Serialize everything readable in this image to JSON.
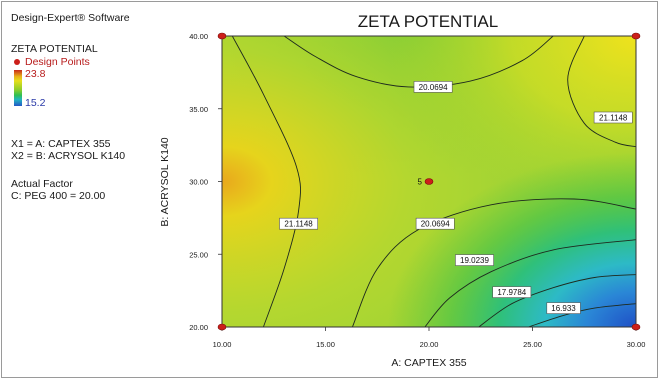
{
  "software_label": "Design-Expert® Software",
  "legend": {
    "response_name": "ZETA POTENTIAL",
    "design_points_label": "Design Points",
    "scale_max": "23.8",
    "scale_min": "15.2",
    "x1_line": "X1 = A: CAPTEX 355",
    "x2_line": "X2 = B: ACRYSOL K140",
    "actual_factor_title": "Actual Factor",
    "actual_factor_value": "C: PEG 400 = 20.00"
  },
  "colors": {
    "design_point": "#cc1f1a",
    "high": "#e6df1c",
    "mid": "#5fc43a",
    "low": "#2457c6"
  },
  "chart_data": {
    "type": "contour",
    "title": "ZETA POTENTIAL",
    "xlabel": "A: CAPTEX 355",
    "ylabel": "B: ACRYSOL K140",
    "xlim": [
      10,
      30
    ],
    "ylim": [
      20,
      40
    ],
    "x_ticks": [
      "10.00",
      "15.00",
      "20.00",
      "25.00",
      "30.00"
    ],
    "y_ticks": [
      "20.00",
      "25.00",
      "30.00",
      "35.00",
      "40.00"
    ],
    "color_range": [
      15.2,
      23.8
    ],
    "design_points": [
      {
        "x": 10,
        "y": 20,
        "label": ""
      },
      {
        "x": 30,
        "y": 20,
        "label": ""
      },
      {
        "x": 10,
        "y": 40,
        "label": ""
      },
      {
        "x": 30,
        "y": 40,
        "label": ""
      },
      {
        "x": 20,
        "y": 30,
        "label": "5"
      }
    ],
    "contours": [
      {
        "level": "20.0694",
        "segments": [
          {
            "points": [
              [
                13,
                40
              ],
              [
                14.5,
                38.6
              ],
              [
                16.5,
                37.2
              ],
              [
                19,
                36.5
              ],
              [
                22,
                36.9
              ],
              [
                24.5,
                38.3
              ],
              [
                26,
                40
              ]
            ],
            "label_at": [
              20.2,
              36.5
            ]
          },
          {
            "points": [
              [
                16.3,
                20
              ],
              [
                17.5,
                24
              ],
              [
                19.5,
                26.7
              ],
              [
                23,
                28.4
              ],
              [
                27,
                28.8
              ],
              [
                30,
                28.1
              ]
            ],
            "label_at": [
              20.3,
              27.1
            ]
          }
        ]
      },
      {
        "level": "21.1148",
        "segments": [
          {
            "points": [
              [
                27.5,
                40
              ],
              [
                26.7,
                37
              ],
              [
                27.5,
                34
              ],
              [
                29,
                32.7
              ],
              [
                30,
                32.4
              ]
            ],
            "label_at": [
              28.9,
              34.4
            ]
          },
          {
            "points": [
              [
                10.5,
                40
              ],
              [
                12,
                36
              ],
              [
                13.6,
                31
              ],
              [
                13.7,
                28
              ],
              [
                13,
                24
              ],
              [
                12,
                20
              ]
            ],
            "label_at": [
              13.7,
              27.1
            ]
          }
        ]
      },
      {
        "level": "19.0239",
        "segments": [
          {
            "points": [
              [
                19.8,
                20
              ],
              [
                21,
                22
              ],
              [
                23,
                23.8
              ],
              [
                26,
                25.3
              ],
              [
                30,
                26
              ]
            ],
            "label_at": [
              22.2,
              24.6
            ]
          }
        ]
      },
      {
        "level": "17.9784",
        "segments": [
          {
            "points": [
              [
                22.4,
                20
              ],
              [
                24,
                21.6
              ],
              [
                26,
                22.7
              ],
              [
                28,
                23.4
              ],
              [
                30,
                23.6
              ]
            ],
            "label_at": [
              24.0,
              22.4
            ]
          }
        ]
      },
      {
        "level": "16.933",
        "segments": [
          {
            "points": [
              [
                24.8,
                20
              ],
              [
                26.5,
                20.8
              ],
              [
                28,
                21.3
              ],
              [
                30,
                21.6
              ]
            ],
            "label_at": [
              26.5,
              21.3
            ]
          }
        ]
      }
    ]
  }
}
